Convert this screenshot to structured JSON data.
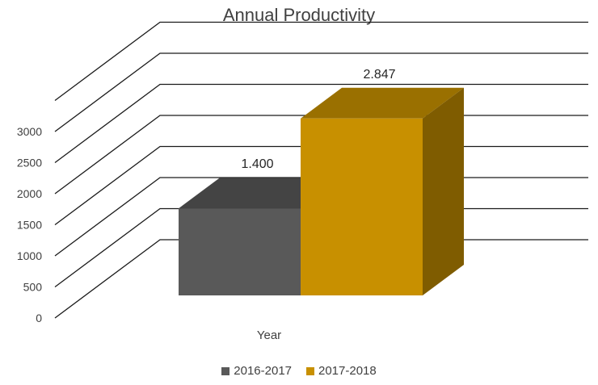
{
  "chart_data": {
    "type": "bar",
    "style": "3d-column",
    "title": "Annual Productivity",
    "xlabel": "Year",
    "ylabel": "",
    "categories": [
      "Year"
    ],
    "series": [
      {
        "name": "2016-2017",
        "values": [
          1400
        ],
        "data_label": "1.400",
        "color": "#595959"
      },
      {
        "name": "2017-2018",
        "values": [
          2847
        ],
        "data_label": "2.847",
        "color": "#C89000"
      }
    ],
    "y_ticks": [
      "0",
      "500",
      "1000",
      "1500",
      "2000",
      "2500",
      "3000"
    ],
    "ylim": [
      0,
      3000
    ],
    "grid": true,
    "legend_position": "bottom"
  },
  "legend": [
    {
      "label": "2016-2017",
      "color": "#595959"
    },
    {
      "label": "2017-2018",
      "color": "#C89000"
    }
  ]
}
